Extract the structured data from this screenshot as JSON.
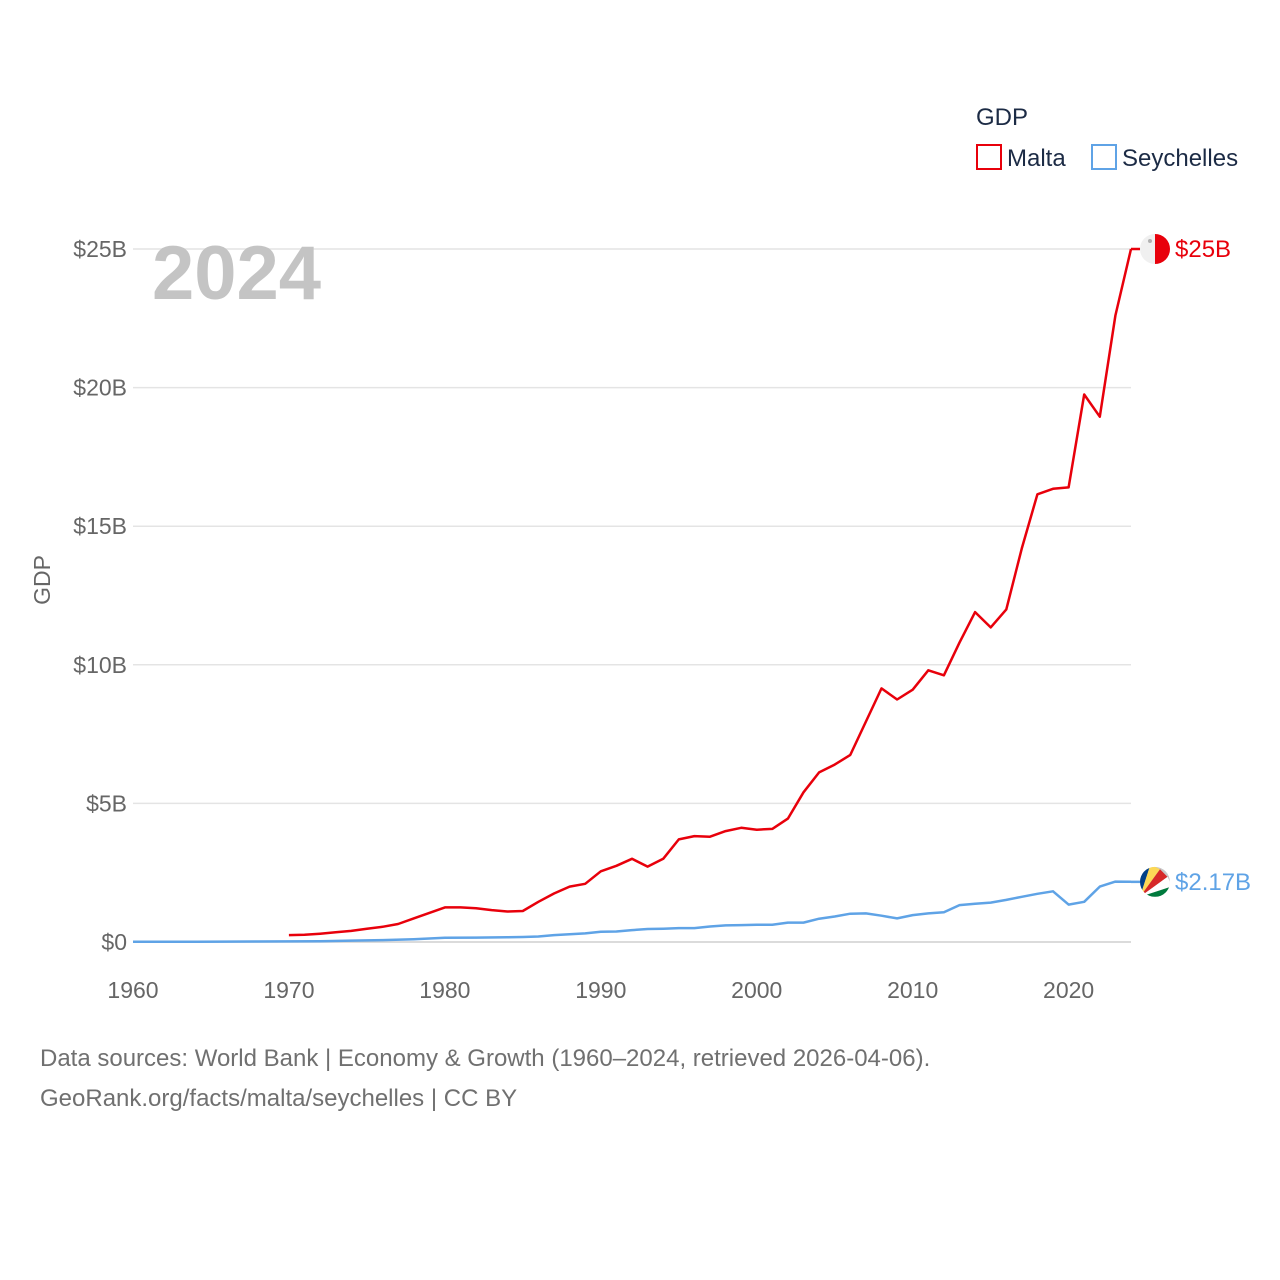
{
  "chart_data": {
    "type": "line",
    "title": "",
    "current_year": "2024",
    "xlabel": "",
    "ylabel": "GDP",
    "xlim": [
      1960,
      2024
    ],
    "ylim": [
      0,
      25
    ],
    "y_unit": "billion USD",
    "x_ticks": [
      "1960",
      "1970",
      "1980",
      "1990",
      "2000",
      "2010",
      "2020"
    ],
    "y_ticks": [
      {
        "value": 0,
        "label": "$0"
      },
      {
        "value": 5,
        "label": "$5B"
      },
      {
        "value": 10,
        "label": "$10B"
      },
      {
        "value": 15,
        "label": "$15B"
      },
      {
        "value": 20,
        "label": "$20B"
      },
      {
        "value": 25,
        "label": "$25B"
      }
    ],
    "grid": true,
    "legend": {
      "title": "GDP",
      "placement": "top-right"
    },
    "series": [
      {
        "name": "Malta",
        "color": "#e8000b",
        "end_label": "$25B",
        "x": [
          1970,
          1971,
          1972,
          1973,
          1974,
          1975,
          1976,
          1977,
          1978,
          1979,
          1980,
          1981,
          1982,
          1983,
          1984,
          1985,
          1986,
          1987,
          1988,
          1989,
          1990,
          1991,
          1992,
          1993,
          1994,
          1995,
          1996,
          1997,
          1998,
          1999,
          2000,
          2001,
          2002,
          2003,
          2004,
          2005,
          2006,
          2007,
          2008,
          2009,
          2010,
          2011,
          2012,
          2013,
          2014,
          2015,
          2016,
          2017,
          2018,
          2019,
          2020,
          2021,
          2022,
          2023,
          2024
        ],
        "values": [
          0.25,
          0.26,
          0.3,
          0.35,
          0.4,
          0.48,
          0.55,
          0.65,
          0.85,
          1.05,
          1.25,
          1.25,
          1.22,
          1.15,
          1.1,
          1.12,
          1.45,
          1.75,
          2.0,
          2.1,
          2.55,
          2.75,
          3.0,
          2.72,
          3.0,
          3.7,
          3.82,
          3.8,
          4.0,
          4.12,
          4.05,
          4.08,
          4.45,
          5.4,
          6.12,
          6.4,
          6.75,
          7.95,
          9.15,
          8.75,
          9.1,
          9.8,
          9.62,
          10.8,
          11.9,
          11.35,
          12.0,
          14.2,
          16.15,
          16.35,
          16.4,
          19.75,
          18.95,
          22.6,
          25.0
        ]
      },
      {
        "name": "Seychelles",
        "color": "#5fa3e6",
        "end_label": "$2.17B",
        "x": [
          1960,
          1962,
          1964,
          1966,
          1968,
          1970,
          1972,
          1974,
          1976,
          1978,
          1980,
          1982,
          1984,
          1985,
          1986,
          1987,
          1988,
          1989,
          1990,
          1991,
          1992,
          1993,
          1994,
          1995,
          1996,
          1997,
          1998,
          1999,
          2000,
          2001,
          2002,
          2003,
          2004,
          2005,
          2006,
          2007,
          2008,
          2009,
          2010,
          2011,
          2012,
          2013,
          2014,
          2015,
          2016,
          2017,
          2018,
          2019,
          2020,
          2021,
          2022,
          2023,
          2024
        ],
        "values": [
          0.01,
          0.01,
          0.012,
          0.014,
          0.017,
          0.02,
          0.03,
          0.05,
          0.07,
          0.1,
          0.15,
          0.16,
          0.17,
          0.18,
          0.2,
          0.25,
          0.28,
          0.31,
          0.37,
          0.38,
          0.43,
          0.47,
          0.48,
          0.5,
          0.5,
          0.56,
          0.6,
          0.61,
          0.62,
          0.62,
          0.7,
          0.7,
          0.84,
          0.92,
          1.02,
          1.03,
          0.95,
          0.85,
          0.97,
          1.03,
          1.07,
          1.33,
          1.38,
          1.42,
          1.52,
          1.63,
          1.74,
          1.83,
          1.35,
          1.45,
          2.0,
          2.18,
          2.17
        ]
      }
    ]
  },
  "footer": {
    "line1": "Data sources: World Bank | Economy & Growth (1960–2024, retrieved 2026-04-06).",
    "line2": "GeoRank.org/facts/malta/seychelles | CC BY"
  }
}
